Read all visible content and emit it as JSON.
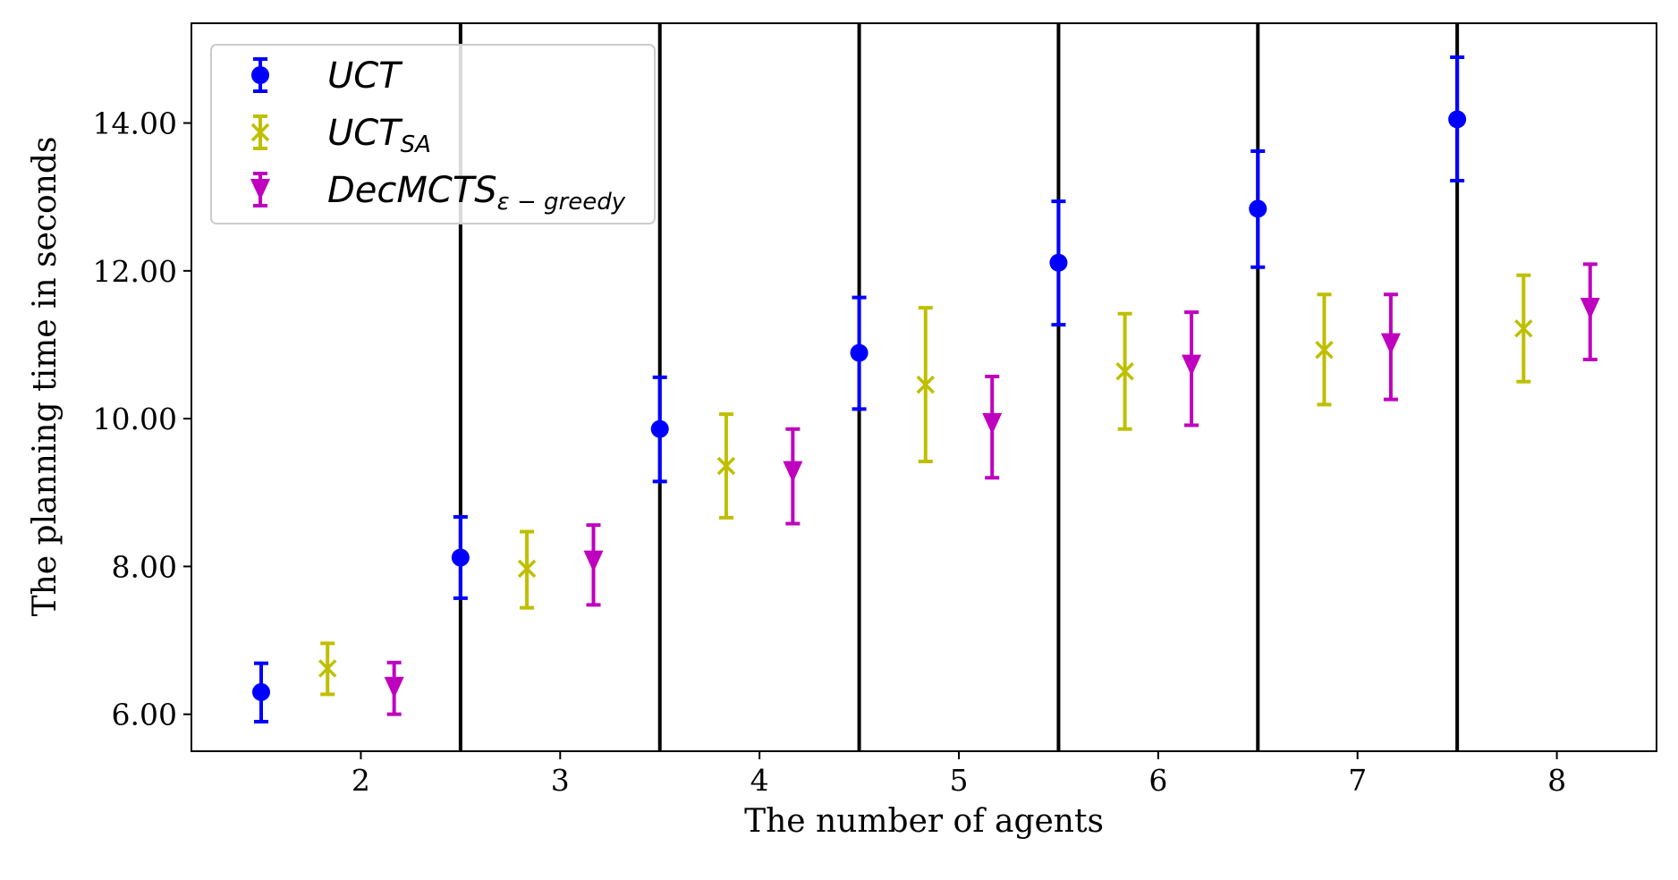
{
  "chart_data": {
    "type": "errorbar",
    "title": "",
    "xlabel": "The number of agents",
    "ylabel": "The planning time in seconds",
    "categories": [
      "2",
      "3",
      "4",
      "5",
      "6",
      "7",
      "8"
    ],
    "xlim": [
      1.15,
      8.5
    ],
    "ylim": [
      5.5,
      15.35
    ],
    "yticks": [
      6,
      8,
      10,
      12,
      14
    ],
    "ytick_labels": [
      "6.00",
      "8.00",
      "10.00",
      "12.00",
      "14.00"
    ],
    "grid": false,
    "legend_position": "upper-left",
    "series": [
      {
        "name": "UCT",
        "name_main": "UCT",
        "name_sub": "",
        "marker": "circle",
        "color": "#0000ff",
        "values": [
          6.3,
          8.12,
          9.86,
          10.89,
          12.11,
          12.84,
          14.05
        ],
        "err_low": [
          5.9,
          7.57,
          9.15,
          10.13,
          11.27,
          12.05,
          13.22
        ],
        "err_high": [
          6.69,
          8.67,
          10.56,
          11.64,
          12.94,
          13.62,
          14.89
        ]
      },
      {
        "name": "UCT_SA",
        "name_main": "UCT",
        "name_sub": "SA",
        "marker": "x",
        "color": "#bfbf00",
        "values": [
          6.62,
          7.97,
          9.36,
          10.46,
          10.64,
          10.93,
          11.22
        ],
        "err_low": [
          6.27,
          7.44,
          8.66,
          9.42,
          9.86,
          10.19,
          10.5
        ],
        "err_high": [
          6.96,
          8.47,
          10.06,
          11.5,
          11.42,
          11.68,
          11.94
        ]
      },
      {
        "name": "DecMCTS_ε-greedy",
        "name_main": "DecMCTS",
        "name_sub": "ε − greedy",
        "marker": "triangle-down",
        "color": "#bf00bf",
        "values": [
          6.36,
          8.07,
          9.28,
          9.93,
          10.72,
          11.01,
          11.49
        ],
        "err_low": [
          6.0,
          7.48,
          8.58,
          9.2,
          9.91,
          10.26,
          10.8
        ],
        "err_high": [
          6.7,
          8.56,
          9.86,
          10.57,
          11.44,
          11.68,
          12.09
        ]
      }
    ]
  }
}
